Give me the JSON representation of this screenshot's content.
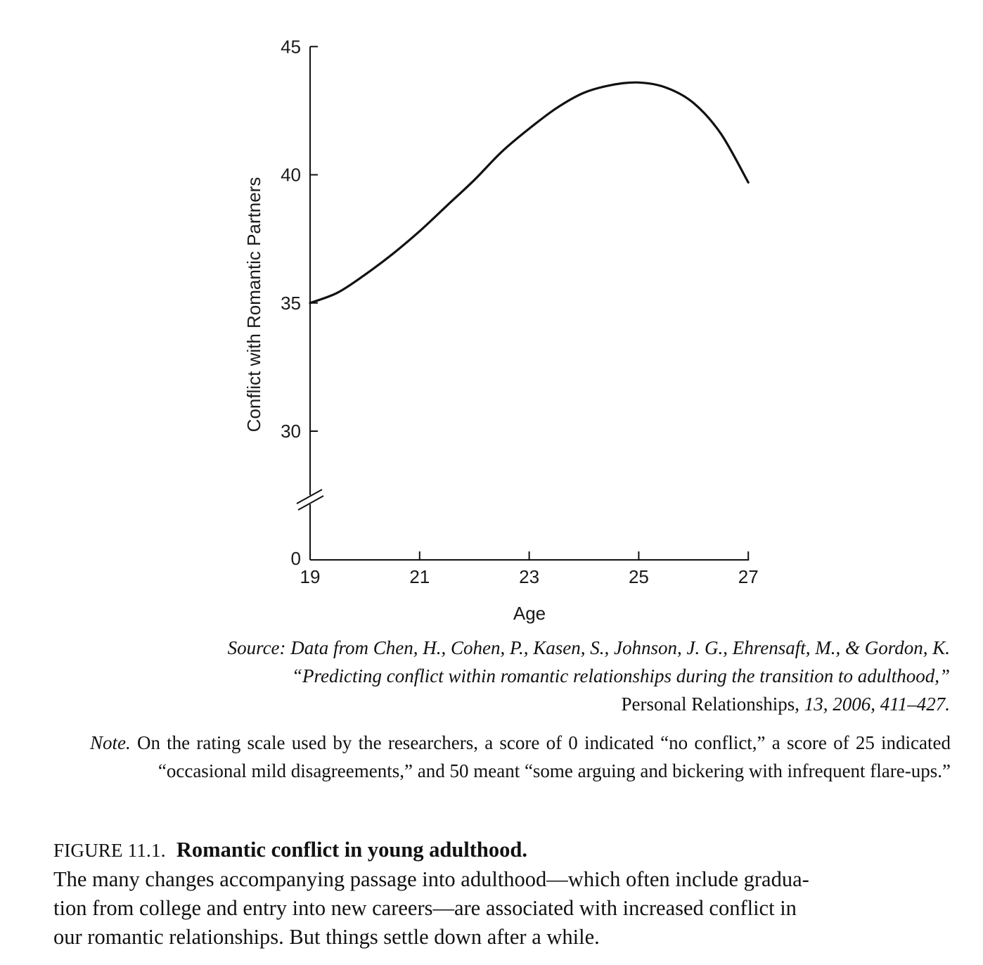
{
  "chart_data": {
    "type": "line",
    "xlabel": "Age",
    "ylabel": "Conflict with Romantic Partners",
    "x_ticks": [
      "19",
      "21",
      "23",
      "25",
      "27"
    ],
    "y_ticks": [
      "0",
      "30",
      "35",
      "40",
      "45"
    ],
    "xlim": [
      19,
      27
    ],
    "ylim": [
      25,
      45
    ],
    "y_axis_break": "between 0 and 30",
    "grid": false,
    "series": [
      {
        "x": [
          19,
          19.5,
          20,
          20.5,
          21,
          21.5,
          22,
          22.5,
          23,
          23.5,
          24,
          24.5,
          25,
          25.5,
          26,
          26.5,
          27
        ],
        "y": [
          35.0,
          35.4,
          36.1,
          36.9,
          37.8,
          38.8,
          39.8,
          40.9,
          41.8,
          42.6,
          43.2,
          43.5,
          43.6,
          43.4,
          42.8,
          41.6,
          39.7
        ]
      }
    ]
  },
  "source": {
    "line1": "Source: Data from Chen, H., Cohen, P., Kasen, S., Johnson, J. G., Ehrensaft, M., & Gordon, K.",
    "line2": "“Predicting conflict within romantic relationships during the transition to adulthood,”",
    "journal": "Personal Relationships,",
    "citation": " 13, 2006, 411–427."
  },
  "note": {
    "label": "Note.",
    "text": " On the rating scale used by the researchers, a score of 0 indicated “no conflict,” a score of 25 indicated “occasional mild disagreements,” and 50 meant “some arguing and bickering with infrequent flare-ups.”"
  },
  "caption": {
    "figure_number": "FIGURE 11.1.",
    "title": "Romantic conflict in young adulthood.",
    "lines": [
      "The many changes accompanying passage into adulthood—which often include gradua-",
      "tion from college and entry into new careers—are associated with increased conflict in",
      "our romantic relationships. But things settle down after a while."
    ]
  }
}
